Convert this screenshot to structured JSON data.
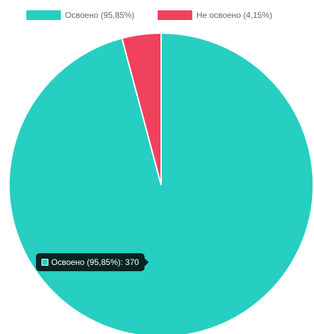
{
  "chart_data": {
    "type": "pie",
    "categories": [
      "Освоено (95,85%)",
      "Не освоено (4,15%)"
    ],
    "values": [
      95.85,
      4.15
    ],
    "colors": [
      "#26cfc1",
      "#f1425d"
    ],
    "legend_position": "top",
    "title": "",
    "tooltip": {
      "label": "Освоено (95,85%): 370",
      "color": "#26cfc1"
    }
  }
}
